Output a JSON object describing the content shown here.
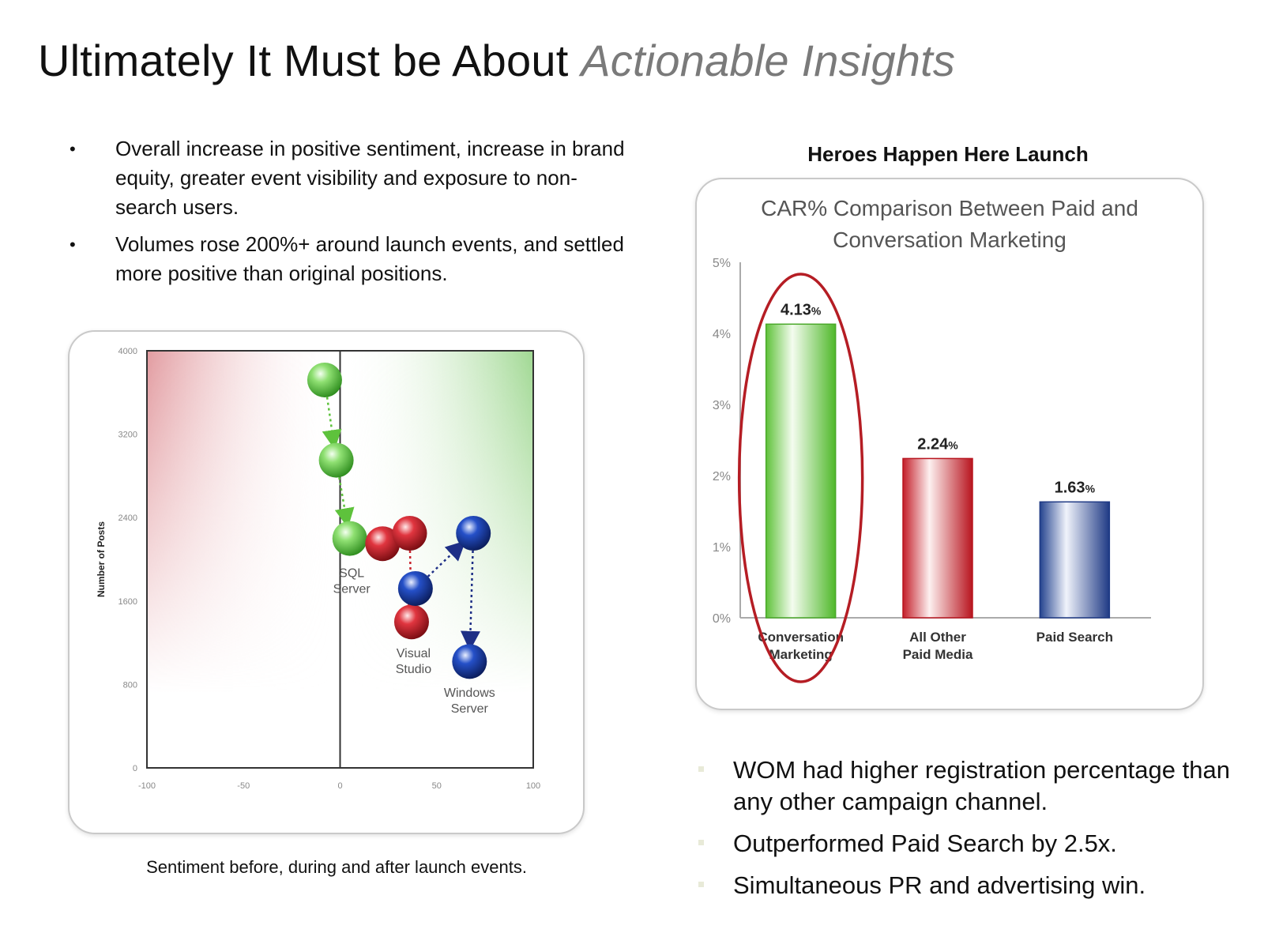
{
  "title": {
    "main": "Ultimately It Must be About",
    "emphasis": "Actionable Insights"
  },
  "left_bullets": [
    "Overall increase in positive sentiment, increase in brand equity, greater event visibility and exposure to non-search users.",
    "Volumes rose 200%+ around launch events, and settled more positive than original positions."
  ],
  "right_bullets": [
    "WOM had higher registration percentage than any other campaign channel.",
    "Outperformed Paid Search by 2.5x.",
    "Simultaneous PR and advertising win."
  ],
  "scatter_caption": "Sentiment before, during and after launch events.",
  "bar_chart_heading": "Heroes Happen Here Launch",
  "colors": {
    "green": "#7ed957",
    "red": "#c8232c",
    "blue": "#1e3d9b",
    "highlight_ring": "#b51d24",
    "paid_search_blue": "#2c4a9a"
  },
  "chart_data": [
    {
      "type": "scatter",
      "xlabel": "",
      "ylabel": "Number of Posts",
      "xlim": [
        -100,
        100
      ],
      "ylim": [
        0,
        4000
      ],
      "x_ticks": [
        "-100",
        "-50",
        "0",
        "50",
        "100"
      ],
      "y_ticks": [
        "0",
        "800",
        "1600",
        "2400",
        "3200",
        "4000"
      ],
      "grid": false,
      "series": [
        {
          "name": "SQL Server",
          "color": "green",
          "points": [
            {
              "x": -8,
              "y": 3720
            },
            {
              "x": -2,
              "y": 2950
            },
            {
              "x": 5,
              "y": 2200
            }
          ],
          "arrow": "dotted"
        },
        {
          "name": "Visual Studio",
          "color": "red",
          "points": [
            {
              "x": 22,
              "y": 2150
            },
            {
              "x": 36,
              "y": 2250
            },
            {
              "x": 37,
              "y": 1400
            }
          ],
          "arrow": "dotted"
        },
        {
          "name": "Windows Server",
          "color": "blue",
          "points": [
            {
              "x": 39,
              "y": 1720
            },
            {
              "x": 69,
              "y": 2250
            },
            {
              "x": 67,
              "y": 1020
            }
          ],
          "arrow": "dotted"
        }
      ],
      "labels": [
        {
          "text_lines": [
            "SQL",
            "Server"
          ],
          "x": 6,
          "y": 1830
        },
        {
          "text_lines": [
            "Visual",
            "Studio"
          ],
          "x": 38,
          "y": 1060
        },
        {
          "text_lines": [
            "Windows",
            "Server"
          ],
          "x": 67,
          "y": 680
        }
      ]
    },
    {
      "type": "bar",
      "title_lines": [
        "CAR% Comparison Between Paid and",
        "Conversation Marketing"
      ],
      "categories": [
        [
          "Conversation",
          "Marketing"
        ],
        [
          "All Other",
          "Paid Media"
        ],
        [
          "Paid Search"
        ]
      ],
      "values": [
        4.13,
        2.24,
        1.63
      ],
      "value_labels": [
        "4.13",
        "2.24",
        "1.63"
      ],
      "value_suffix": "%",
      "ylim": [
        0,
        5
      ],
      "y_ticks": [
        "0%",
        "1%",
        "2%",
        "3%",
        "4%",
        "5%"
      ],
      "bar_colors": [
        "green",
        "red",
        "blue"
      ],
      "highlighted": 0,
      "grid": false
    }
  ]
}
